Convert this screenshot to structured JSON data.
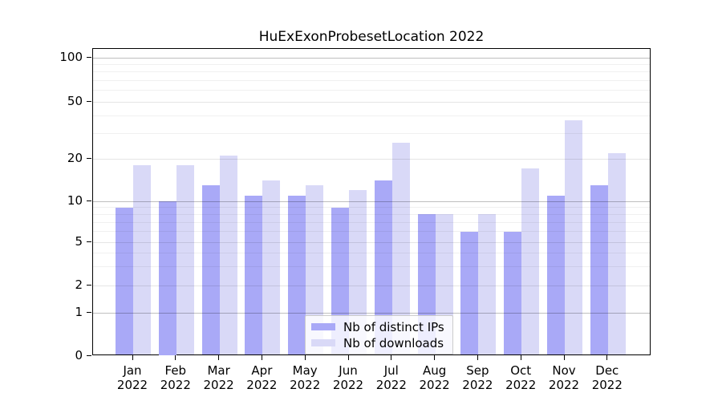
{
  "chart_data": {
    "type": "bar",
    "title": "HuExExonProbesetLocation 2022",
    "year": "2022",
    "months": [
      "Jan",
      "Feb",
      "Mar",
      "Apr",
      "May",
      "Jun",
      "Jul",
      "Aug",
      "Sep",
      "Oct",
      "Nov",
      "Dec"
    ],
    "series": [
      {
        "name": "Nb of distinct IPs",
        "color": "#a9a9f7",
        "values": [
          9,
          10,
          13,
          11,
          11,
          9,
          14,
          8,
          6,
          6,
          11,
          13
        ]
      },
      {
        "name": "Nb of downloads",
        "color": "#d9d9f7",
        "values": [
          18,
          18,
          21,
          14,
          13,
          12,
          26,
          8,
          8,
          17,
          37,
          22
        ]
      }
    ],
    "y_axis": {
      "scale": "symlog-like",
      "range": [
        0,
        100
      ],
      "major_ticks": [
        0,
        1,
        2,
        5,
        10,
        20,
        50,
        100
      ],
      "decade_lines": [
        1,
        10,
        100
      ],
      "mid_lines": [
        2,
        5,
        20,
        50
      ],
      "minor_lines": [
        3,
        4,
        6,
        7,
        8,
        9,
        30,
        40,
        60,
        70,
        80,
        90
      ]
    },
    "legend": {
      "position": "bottom-center"
    },
    "grid": "on",
    "colors": {
      "grid_decade": "rgba(0,0,0,0.25)",
      "grid_mid": "rgba(0,0,0,0.10)",
      "grid_minor": "rgba(0,0,0,0.06)"
    }
  }
}
